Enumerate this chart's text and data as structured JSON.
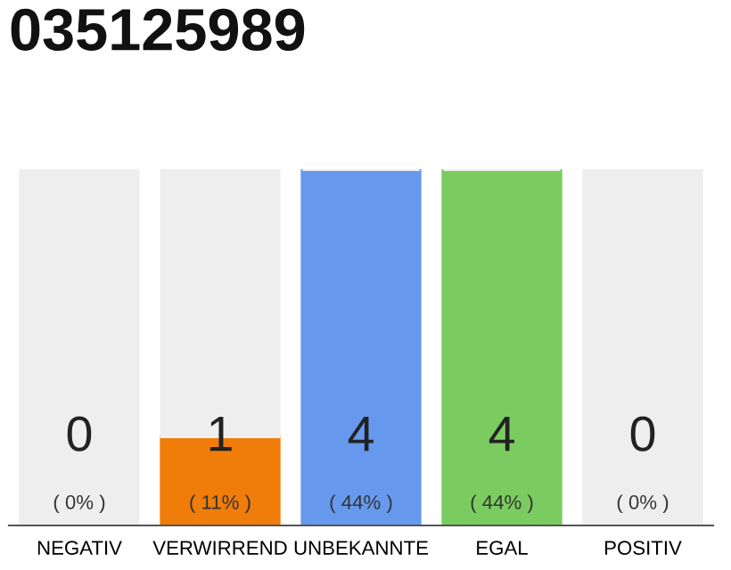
{
  "chart_data": {
    "type": "bar",
    "title": "035125989",
    "stacked": true,
    "categories": [
      "NEGATIV",
      "VERWIRREND",
      "UNBEKANNTE",
      "EGAL",
      "POSITIV"
    ],
    "series": [
      {
        "colors": [
          "#e4e4e4",
          "#f07c0a",
          "#6699ee",
          "#7bcc60",
          "#e4e4e4"
        ],
        "values": [
          0,
          1,
          4,
          4,
          0
        ],
        "value_labels": [
          "0\n( 0% )",
          "1\n( 11% )",
          "4\n( 44% )",
          "4\n( 44% )",
          "0\n( 0% )"
        ]
      },
      {
        "color": "#eeeeee",
        "values": [
          4,
          3,
          0,
          0,
          4
        ]
      }
    ],
    "ylim": [
      0,
      4
    ],
    "tick_labels": "x",
    "grid": false,
    "legend": false
  }
}
